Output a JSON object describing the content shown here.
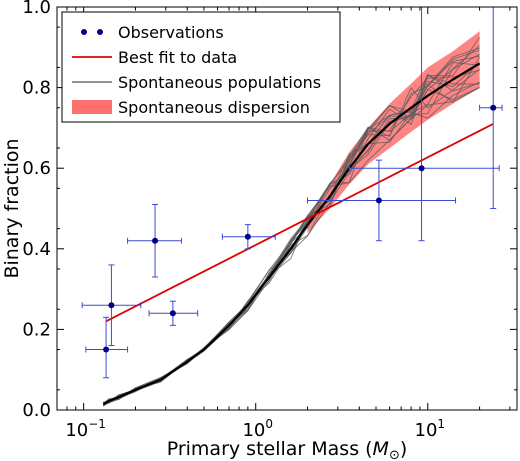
{
  "chart_data": {
    "type": "scatter",
    "xlabel": "Primary stellar Mass (",
    "xlabel_unit": "M",
    "xlabel_sub": "⊙",
    "xlabel_close": ")",
    "ylabel": "Binary fraction",
    "xscale": "log",
    "xlim": [
      0.07,
      33
    ],
    "ylim": [
      0.0,
      1.0
    ],
    "x_ticks": [
      {
        "value": 0.1,
        "base": "10",
        "exp": "−1"
      },
      {
        "value": 1,
        "base": "10",
        "exp": "0"
      },
      {
        "value": 10,
        "base": "10",
        "exp": "1"
      }
    ],
    "y_ticks": [
      {
        "value": 0.0,
        "label": "0.0"
      },
      {
        "value": 0.2,
        "label": "0.2"
      },
      {
        "value": 0.4,
        "label": "0.4"
      },
      {
        "value": 0.6,
        "label": "0.6"
      },
      {
        "value": 0.8,
        "label": "0.8"
      },
      {
        "value": 1.0,
        "label": "1.0"
      }
    ],
    "legend": {
      "position": "top-left",
      "entries": [
        {
          "label": "Observations",
          "style": "dots",
          "color": "#00008b"
        },
        {
          "label": "Best fit to data",
          "style": "line",
          "color": "#dd0000"
        },
        {
          "label": "Spontaneous populations",
          "style": "line",
          "color": "#555555"
        },
        {
          "label": "Spontaneous dispersion",
          "style": "patch",
          "color": "#ff7070"
        }
      ]
    },
    "observations": {
      "color": "#00008b",
      "errorbar_color": "#3b4bd6",
      "points": [
        {
          "x": 0.135,
          "y": 0.15,
          "xerr": [
            0.103,
            0.18
          ],
          "yerr": [
            0.08,
            0.23
          ]
        },
        {
          "x": 0.145,
          "y": 0.26,
          "xerr": [
            0.098,
            0.215
          ],
          "yerr": [
            0.16,
            0.36
          ]
        },
        {
          "x": 0.26,
          "y": 0.42,
          "xerr": [
            0.18,
            0.37
          ],
          "yerr": [
            0.33,
            0.51
          ]
        },
        {
          "x": 0.33,
          "y": 0.24,
          "xerr": [
            0.24,
            0.46
          ],
          "yerr": [
            0.21,
            0.27
          ]
        },
        {
          "x": 0.9,
          "y": 0.43,
          "xerr": [
            0.64,
            1.3
          ],
          "yerr": [
            0.4,
            0.46
          ]
        },
        {
          "x": 5.2,
          "y": 0.52,
          "xerr": [
            2.0,
            14.5
          ],
          "yerr": [
            0.42,
            0.62
          ]
        },
        {
          "x": 9.2,
          "y": 0.6,
          "xerr": [
            3.5,
            26
          ],
          "yerr": [
            0.42,
            1.0
          ]
        },
        {
          "x": 24,
          "y": 0.75,
          "xerr": [
            20,
            27
          ],
          "yerr": [
            0.5,
            1.0
          ]
        }
      ]
    },
    "best_fit": {
      "color": "#dd0000",
      "x": [
        0.135,
        24
      ],
      "y": [
        0.22,
        0.71
      ]
    },
    "spontaneous_median": {
      "color": "#000000",
      "x": [
        0.13,
        0.14,
        0.16,
        0.2,
        0.28,
        0.4,
        0.5,
        0.7,
        0.9,
        1.2,
        1.6,
        2.0,
        2.7,
        3.5,
        4.5,
        6.0,
        8.0,
        10.0,
        14.0,
        20.0
      ],
      "y": [
        0.015,
        0.022,
        0.032,
        0.05,
        0.075,
        0.12,
        0.15,
        0.21,
        0.26,
        0.33,
        0.4,
        0.46,
        0.53,
        0.6,
        0.66,
        0.71,
        0.75,
        0.78,
        0.82,
        0.86
      ]
    },
    "spontaneous_dispersion": {
      "color": "#ff7070",
      "x": [
        2.0,
        2.7,
        3.5,
        4.5,
        6.0,
        8.0,
        10.0,
        14.0,
        20.0
      ],
      "lower": [
        0.44,
        0.5,
        0.56,
        0.61,
        0.65,
        0.69,
        0.72,
        0.76,
        0.8
      ],
      "upper": [
        0.48,
        0.56,
        0.64,
        0.7,
        0.76,
        0.81,
        0.85,
        0.89,
        0.94
      ]
    }
  }
}
